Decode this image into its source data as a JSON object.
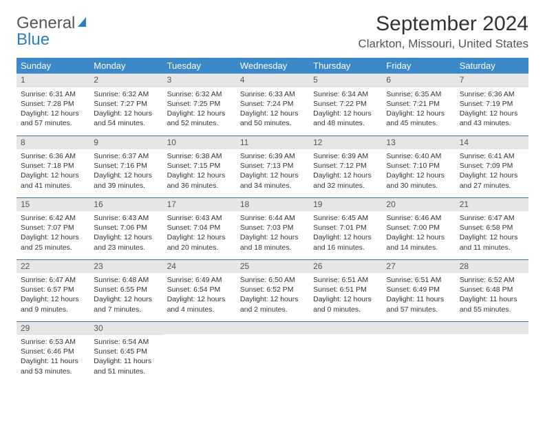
{
  "brand": {
    "word1": "General",
    "word2": "Blue"
  },
  "title": "September 2024",
  "location": "Clarkton, Missouri, United States",
  "colors": {
    "header_bg": "#3b89c9",
    "header_text": "#ffffff",
    "row_divider": "#3b6fa0",
    "daynum_bg": "#e6e6e6",
    "brand_blue": "#2b7ec2",
    "text": "#333333",
    "page_bg": "#ffffff"
  },
  "day_headers": [
    "Sunday",
    "Monday",
    "Tuesday",
    "Wednesday",
    "Thursday",
    "Friday",
    "Saturday"
  ],
  "weeks": [
    [
      {
        "n": "1",
        "sunrise": "6:31 AM",
        "sunset": "7:28 PM",
        "daylight": "12 hours and 57 minutes."
      },
      {
        "n": "2",
        "sunrise": "6:32 AM",
        "sunset": "7:27 PM",
        "daylight": "12 hours and 54 minutes."
      },
      {
        "n": "3",
        "sunrise": "6:32 AM",
        "sunset": "7:25 PM",
        "daylight": "12 hours and 52 minutes."
      },
      {
        "n": "4",
        "sunrise": "6:33 AM",
        "sunset": "7:24 PM",
        "daylight": "12 hours and 50 minutes."
      },
      {
        "n": "5",
        "sunrise": "6:34 AM",
        "sunset": "7:22 PM",
        "daylight": "12 hours and 48 minutes."
      },
      {
        "n": "6",
        "sunrise": "6:35 AM",
        "sunset": "7:21 PM",
        "daylight": "12 hours and 45 minutes."
      },
      {
        "n": "7",
        "sunrise": "6:36 AM",
        "sunset": "7:19 PM",
        "daylight": "12 hours and 43 minutes."
      }
    ],
    [
      {
        "n": "8",
        "sunrise": "6:36 AM",
        "sunset": "7:18 PM",
        "daylight": "12 hours and 41 minutes."
      },
      {
        "n": "9",
        "sunrise": "6:37 AM",
        "sunset": "7:16 PM",
        "daylight": "12 hours and 39 minutes."
      },
      {
        "n": "10",
        "sunrise": "6:38 AM",
        "sunset": "7:15 PM",
        "daylight": "12 hours and 36 minutes."
      },
      {
        "n": "11",
        "sunrise": "6:39 AM",
        "sunset": "7:13 PM",
        "daylight": "12 hours and 34 minutes."
      },
      {
        "n": "12",
        "sunrise": "6:39 AM",
        "sunset": "7:12 PM",
        "daylight": "12 hours and 32 minutes."
      },
      {
        "n": "13",
        "sunrise": "6:40 AM",
        "sunset": "7:10 PM",
        "daylight": "12 hours and 30 minutes."
      },
      {
        "n": "14",
        "sunrise": "6:41 AM",
        "sunset": "7:09 PM",
        "daylight": "12 hours and 27 minutes."
      }
    ],
    [
      {
        "n": "15",
        "sunrise": "6:42 AM",
        "sunset": "7:07 PM",
        "daylight": "12 hours and 25 minutes."
      },
      {
        "n": "16",
        "sunrise": "6:43 AM",
        "sunset": "7:06 PM",
        "daylight": "12 hours and 23 minutes."
      },
      {
        "n": "17",
        "sunrise": "6:43 AM",
        "sunset": "7:04 PM",
        "daylight": "12 hours and 20 minutes."
      },
      {
        "n": "18",
        "sunrise": "6:44 AM",
        "sunset": "7:03 PM",
        "daylight": "12 hours and 18 minutes."
      },
      {
        "n": "19",
        "sunrise": "6:45 AM",
        "sunset": "7:01 PM",
        "daylight": "12 hours and 16 minutes."
      },
      {
        "n": "20",
        "sunrise": "6:46 AM",
        "sunset": "7:00 PM",
        "daylight": "12 hours and 14 minutes."
      },
      {
        "n": "21",
        "sunrise": "6:47 AM",
        "sunset": "6:58 PM",
        "daylight": "12 hours and 11 minutes."
      }
    ],
    [
      {
        "n": "22",
        "sunrise": "6:47 AM",
        "sunset": "6:57 PM",
        "daylight": "12 hours and 9 minutes."
      },
      {
        "n": "23",
        "sunrise": "6:48 AM",
        "sunset": "6:55 PM",
        "daylight": "12 hours and 7 minutes."
      },
      {
        "n": "24",
        "sunrise": "6:49 AM",
        "sunset": "6:54 PM",
        "daylight": "12 hours and 4 minutes."
      },
      {
        "n": "25",
        "sunrise": "6:50 AM",
        "sunset": "6:52 PM",
        "daylight": "12 hours and 2 minutes."
      },
      {
        "n": "26",
        "sunrise": "6:51 AM",
        "sunset": "6:51 PM",
        "daylight": "12 hours and 0 minutes."
      },
      {
        "n": "27",
        "sunrise": "6:51 AM",
        "sunset": "6:49 PM",
        "daylight": "11 hours and 57 minutes."
      },
      {
        "n": "28",
        "sunrise": "6:52 AM",
        "sunset": "6:48 PM",
        "daylight": "11 hours and 55 minutes."
      }
    ],
    [
      {
        "n": "29",
        "sunrise": "6:53 AM",
        "sunset": "6:46 PM",
        "daylight": "11 hours and 53 minutes."
      },
      {
        "n": "30",
        "sunrise": "6:54 AM",
        "sunset": "6:45 PM",
        "daylight": "11 hours and 51 minutes."
      },
      null,
      null,
      null,
      null,
      null
    ]
  ],
  "labels": {
    "sunrise_prefix": "Sunrise: ",
    "sunset_prefix": "Sunset: ",
    "daylight_prefix": "Daylight: "
  }
}
